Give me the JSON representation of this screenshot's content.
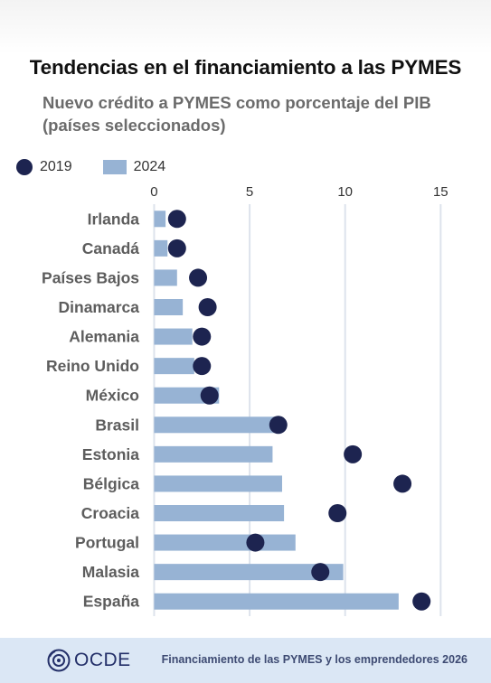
{
  "title": "Tendencias en el financiamiento a las PYMES",
  "subtitle_line1": "Nuevo crédito a PYMES como porcentaje del PIB",
  "subtitle_line2": "(países seleccionados)",
  "legend": [
    {
      "label": "2019",
      "shape": "dot",
      "color": "#1d2450"
    },
    {
      "label": "2024",
      "shape": "bar",
      "color": "#97b3d4"
    }
  ],
  "colors": {
    "dot": "#1d2450",
    "bar": "#97b3d4",
    "grid": "#dde3ec",
    "footer": "#dbe7f5"
  },
  "footer": {
    "logo_text": "OCDE",
    "logo_icon": "oecd-globe-icon",
    "source": "Financiamiento de las PYMES y los emprendedores 2026"
  },
  "chart_data": {
    "type": "bar",
    "orientation": "horizontal",
    "categories": [
      "Irlanda",
      "Canadá",
      "Países Bajos",
      "Dinamarca",
      "Alemania",
      "Reino Unido",
      "México",
      "Brasil",
      "Estonia",
      "Bélgica",
      "Croacia",
      "Portugal",
      "Malasia",
      "España"
    ],
    "series": [
      {
        "name": "2024",
        "mark": "bar",
        "values": [
          0.6,
          0.7,
          1.2,
          1.5,
          2.0,
          2.1,
          3.4,
          6.5,
          6.2,
          6.7,
          6.8,
          7.4,
          9.9,
          12.8
        ]
      },
      {
        "name": "2019",
        "mark": "dot",
        "values": [
          1.2,
          1.2,
          2.3,
          2.8,
          2.5,
          2.5,
          2.9,
          6.5,
          10.4,
          13.0,
          9.6,
          5.3,
          8.7,
          14.0
        ]
      }
    ],
    "xticks": [
      0,
      5,
      10,
      15
    ],
    "xlim": [
      -0.4,
      15.6
    ],
    "grid": true,
    "legend_position": "top-left"
  }
}
